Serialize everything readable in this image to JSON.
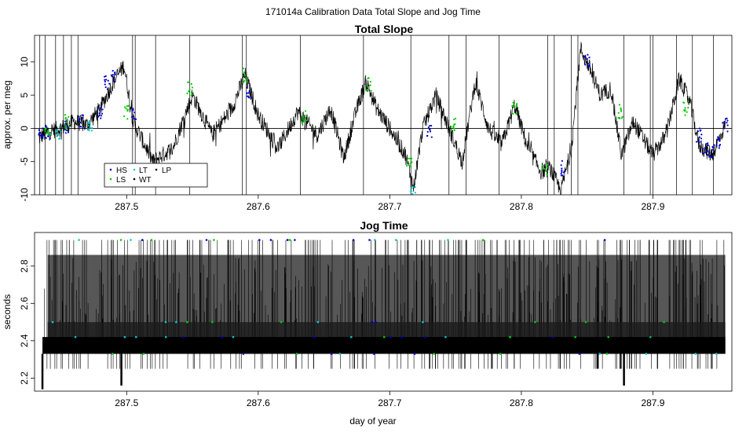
{
  "figure": {
    "title": "171014a   Calibration Data Total Slope and Jog Time"
  },
  "legend": {
    "entries": [
      "HS",
      "LS",
      "LT",
      "WT",
      "LP"
    ],
    "colors": {
      "HS": "#0000cc",
      "LS": "#00cc00",
      "LT": "#00cccc",
      "WT": "#000000",
      "LP": "#000000"
    }
  },
  "colors": {
    "trace": "#000000",
    "jog_fill": "#3a3a3a",
    "zero_line": "#000000"
  },
  "chart_data": [
    {
      "type": "line",
      "title": "Total Slope",
      "xlabel": "",
      "ylabel": "approx. per meg",
      "xlim": [
        287.43,
        287.96
      ],
      "ylim": [
        -10,
        14
      ],
      "xticks": [
        287.5,
        287.6,
        287.7,
        287.8,
        287.9
      ],
      "xtick_labels": [
        "287.5",
        "287.6",
        "287.7",
        "287.8",
        "287.9"
      ],
      "yticks": [
        -10,
        -5,
        0,
        5,
        10
      ],
      "ytick_labels": [
        "-10",
        "-5",
        "0",
        "5",
        "10"
      ],
      "zero_line": 0,
      "series": [
        {
          "name": "Total Slope",
          "x": [
            287.433,
            287.44,
            287.45,
            287.46,
            287.47,
            287.48,
            287.49,
            287.498,
            287.505,
            287.52,
            287.535,
            287.55,
            287.565,
            287.58,
            287.59,
            287.6,
            287.615,
            287.63,
            287.645,
            287.655,
            287.665,
            287.675,
            287.682,
            287.69,
            287.7,
            287.712,
            287.718,
            287.725,
            287.735,
            287.745,
            287.755,
            287.765,
            287.775,
            287.785,
            287.795,
            287.805,
            287.815,
            287.822,
            287.83,
            287.838,
            287.845,
            287.852,
            287.86,
            287.868,
            287.876,
            287.885,
            287.9,
            287.91,
            287.92,
            287.928,
            287.935,
            287.945,
            287.955
          ],
          "y": [
            -1.5,
            -0.5,
            0,
            1,
            0.5,
            3,
            7,
            9.5,
            1,
            -5,
            -3,
            5,
            -1,
            3,
            8,
            2,
            -3,
            2.5,
            -1,
            3,
            -4.5,
            3,
            7,
            3,
            0,
            -4,
            -9,
            0,
            5,
            0,
            -5,
            7,
            0,
            -2.5,
            3.5,
            -3,
            -6.5,
            -6,
            -9.5,
            -3,
            12,
            9,
            5,
            6,
            -4,
            1,
            -4,
            -1,
            7.5,
            4,
            -2.5,
            -4,
            0.5
          ]
        },
        {
          "name": "HS",
          "x": [
            287.435,
            287.44,
            287.455,
            287.465,
            287.48,
            287.485,
            287.49,
            287.506,
            287.593,
            287.73,
            287.832,
            287.85,
            287.935,
            287.94,
            287.945,
            287.95,
            287.955
          ],
          "y": [
            -1,
            -0.5,
            0,
            1,
            2.5,
            7,
            8,
            2,
            5.5,
            -0.5,
            -6,
            10,
            -1,
            -3,
            -3.5,
            -2,
            0.5
          ]
        },
        {
          "name": "LS",
          "x": [
            287.44,
            287.455,
            287.5,
            287.548,
            287.59,
            287.635,
            287.684,
            287.715,
            287.748,
            287.795,
            287.818,
            287.875,
            287.925
          ],
          "y": [
            -0.5,
            1,
            2.5,
            6,
            8,
            1.5,
            6.5,
            -5,
            0.5,
            3,
            -6,
            2.5,
            3
          ]
        },
        {
          "name": "LT",
          "x": [
            287.448,
            287.472,
            287.718
          ],
          "y": [
            -0.5,
            0.5,
            -9.5
          ]
        }
      ]
    },
    {
      "type": "line",
      "title": "Jog Time",
      "xlabel": "day of year",
      "ylabel": "seconds",
      "xlim": [
        287.43,
        287.96
      ],
      "ylim": [
        2.13,
        2.98
      ],
      "xticks": [
        287.5,
        287.6,
        287.7,
        287.8,
        287.9
      ],
      "xtick_labels": [
        "287.5",
        "287.6",
        "287.7",
        "287.8",
        "287.9"
      ],
      "yticks": [
        2.2,
        2.4,
        2.6,
        2.8
      ],
      "ytick_labels": [
        "2.2",
        "2.4",
        "2.6",
        "2.8"
      ],
      "bands": [
        {
          "name": "dense band",
          "y_low": 2.33,
          "y_high": 2.42
        },
        {
          "name": "mid band",
          "y_low": 2.33,
          "y_high": 2.5
        },
        {
          "name": "upper band",
          "y_low": 2.33,
          "y_high": 2.86
        }
      ],
      "series": [
        {
          "name": "Jog Time",
          "x_start": 287.436,
          "x_end": 287.955,
          "typical_low": 2.33,
          "typical_high": 2.42,
          "spike_max": 2.94,
          "dips": [
            {
              "x": 287.436,
              "y": 2.14
            },
            {
              "x": 287.496,
              "y": 2.16
            },
            {
              "x": 287.878,
              "y": 2.16
            }
          ]
        }
      ]
    }
  ]
}
